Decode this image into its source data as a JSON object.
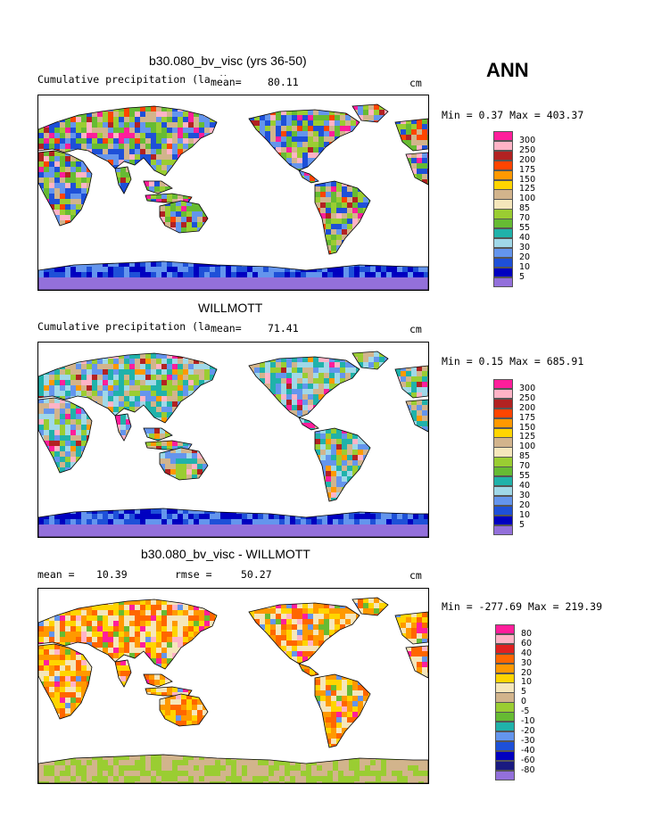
{
  "season": "ANN",
  "units": "cm",
  "panels": [
    {
      "title": "b30.080_bv_visc (yrs 36-50)",
      "subtitle": "Cumulative precipitation (land)",
      "mean_label": "mean=",
      "mean_value": "80.11",
      "minmax": "Min =   0.37 Max = 403.37",
      "legend": {
        "labels": [
          "300",
          "250",
          "200",
          "175",
          "150",
          "125",
          "100",
          "85",
          "70",
          "55",
          "40",
          "30",
          "20",
          "10",
          "5"
        ],
        "colors": [
          "#ff1e9b",
          "#ffb3c6",
          "#b22222",
          "#ff4500",
          "#ff9900",
          "#ffd500",
          "#d2b48c",
          "#f5e6bb",
          "#9acd32",
          "#66bb33",
          "#20b2aa",
          "#a0d8e8",
          "#6495ed",
          "#1e50d8",
          "#0000c0",
          "#9370db"
        ]
      }
    },
    {
      "title": "WILLMOTT",
      "subtitle": "Cumulative precipitation (land)",
      "mean_label": "mean=",
      "mean_value": "71.41",
      "minmax": "Min =   0.15 Max = 685.91",
      "legend": {
        "labels": [
          "300",
          "250",
          "200",
          "175",
          "150",
          "125",
          "100",
          "85",
          "70",
          "55",
          "40",
          "30",
          "20",
          "10",
          "5"
        ],
        "colors": [
          "#ff1e9b",
          "#ffb3c6",
          "#b22222",
          "#ff4500",
          "#ff9900",
          "#ffd500",
          "#d2b48c",
          "#f5e6bb",
          "#9acd32",
          "#66bb33",
          "#20b2aa",
          "#a0d8e8",
          "#6495ed",
          "#1e50d8",
          "#0000c0",
          "#9370db"
        ]
      }
    },
    {
      "title": "b30.080_bv_visc - WILLMOTT",
      "mean_label": "mean =",
      "mean_value": "10.39",
      "rmse_label": "rmse =",
      "rmse_value": "50.27",
      "minmax": "Min = -277.69 Max = 219.39",
      "legend": {
        "labels": [
          "80",
          "60",
          "40",
          "30",
          "20",
          "10",
          "5",
          "0",
          "-5",
          "-10",
          "-20",
          "-30",
          "-40",
          "-60",
          "-80"
        ],
        "colors": [
          "#ff1e9b",
          "#ffb3c6",
          "#e02020",
          "#ff6600",
          "#ff9900",
          "#ffd500",
          "#f5e6bb",
          "#d2b48c",
          "#9acd32",
          "#66bb33",
          "#20b2aa",
          "#6495ed",
          "#1e50d8",
          "#0000c0",
          "#1a1a80",
          "#9370db"
        ]
      }
    }
  ]
}
